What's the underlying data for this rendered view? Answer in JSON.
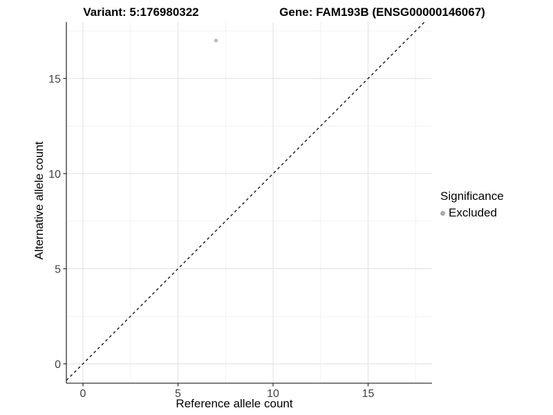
{
  "chart_data": {
    "type": "scatter",
    "title_left": "Variant: 5:176980322",
    "title_right": "Gene: FAM193B (ENSG00000146067)",
    "xlabel": "Reference allele count",
    "ylabel": "Alternative allele count",
    "x_ticks": [
      0,
      5,
      10,
      15
    ],
    "y_ticks": [
      0,
      5,
      10,
      15
    ],
    "x_minor_ticks": [
      2.5,
      7.5,
      12.5,
      17.5
    ],
    "y_minor_ticks": [
      2.5,
      7.5,
      12.5,
      17.5
    ],
    "xlim": [
      -0.87,
      18.36
    ],
    "ylim": [
      -1.02,
      17.96
    ],
    "grid": true,
    "points": [
      {
        "x": 7,
        "y": 17,
        "series": "Excluded"
      }
    ],
    "abline": {
      "slope": 1,
      "intercept": 0,
      "style": "dashed"
    },
    "legend": {
      "title": "Significance",
      "position": "right",
      "items": [
        {
          "label": "Excluded",
          "color": "#aaaaaa"
        }
      ]
    }
  },
  "colors": {
    "background": "#ffffff",
    "grid_major": "#e4e4e4",
    "grid_minor": "#f1f1f1",
    "axis_line": "#333333",
    "tick_text": "#404040",
    "point_fill": "#bcbcbc",
    "abline": "#000000"
  }
}
